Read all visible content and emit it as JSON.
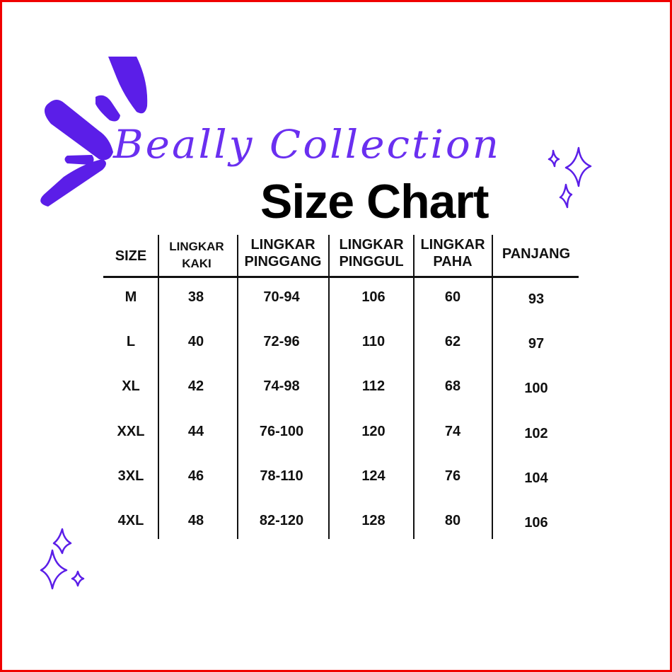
{
  "brand": "Beally Collection",
  "title": "Size Chart",
  "accent_color": "#5b1ee8",
  "border_color": "#f00000",
  "table": {
    "headers": [
      {
        "line1": "SIZE",
        "line2": ""
      },
      {
        "line1": "LINGKAR",
        "line2": "KAKI"
      },
      {
        "line1": "LINGKAR",
        "line2": "PINGGANG"
      },
      {
        "line1": "LINGKAR",
        "line2": "PINGGUL"
      },
      {
        "line1": "LINGKAR",
        "line2": "PAHA"
      },
      {
        "line1": "PANJANG",
        "line2": ""
      }
    ],
    "rows": [
      [
        "M",
        "38",
        "70-94",
        "106",
        "60",
        "93"
      ],
      [
        "L",
        "40",
        "72-96",
        "110",
        "62",
        "97"
      ],
      [
        "XL",
        "42",
        "74-98",
        "112",
        "68",
        "100"
      ],
      [
        "XXL",
        "44",
        "76-100",
        "120",
        "74",
        "102"
      ],
      [
        "3XL",
        "46",
        "78-110",
        "124",
        "76",
        "104"
      ],
      [
        "4XL",
        "48",
        "82-120",
        "128",
        "80",
        "106"
      ]
    ]
  },
  "icons": [
    "burst-icon",
    "sparkle-icon"
  ]
}
